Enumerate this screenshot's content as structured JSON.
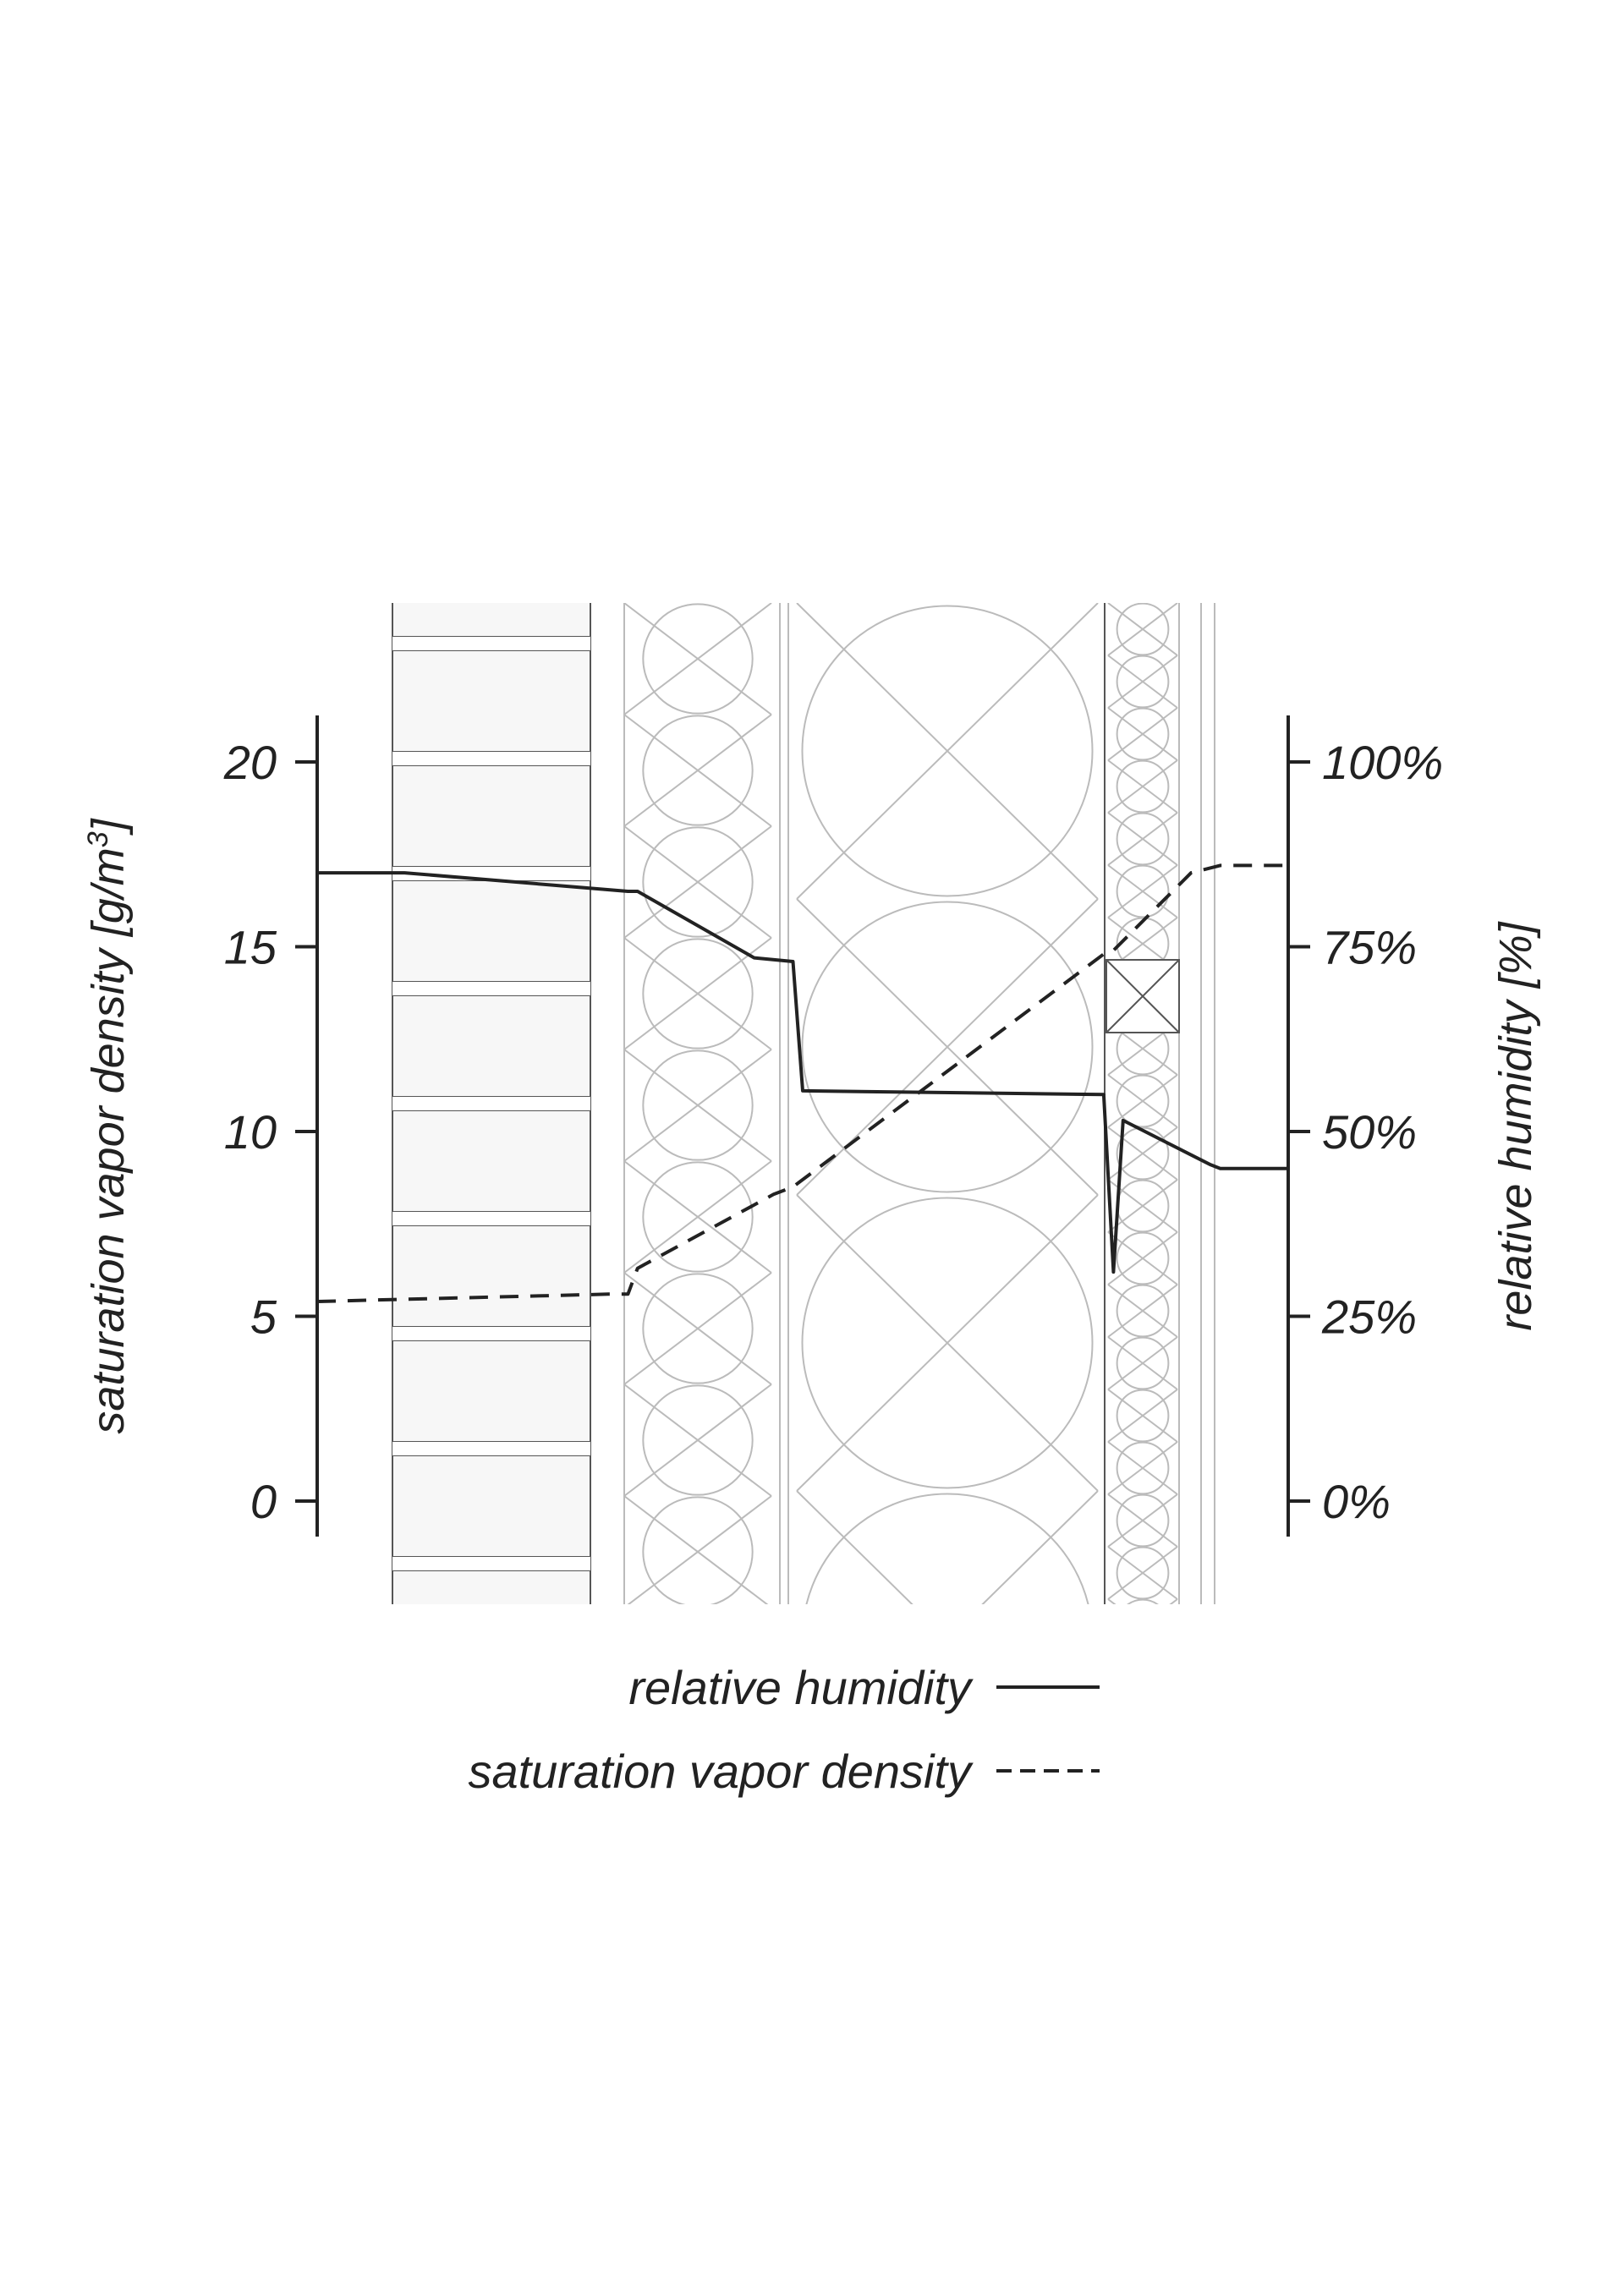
{
  "chart_data": {
    "type": "line",
    "xlabel": "",
    "y_left": {
      "label": "saturation vapor density [g/m³]",
      "label_main": "saturation vapor density [g/m",
      "label_sup": "3",
      "label_end": "]",
      "ylim": [
        -1,
        21
      ],
      "ticks": [
        "20",
        "15",
        "10",
        "5",
        "0"
      ],
      "tick_values": [
        20,
        15,
        10,
        5,
        0
      ]
    },
    "y_right": {
      "label": "relative humidity [%]",
      "ylim": [
        -5,
        105
      ],
      "ticks": [
        "100%",
        "75%",
        "50%",
        "25%",
        "0%"
      ],
      "tick_values": [
        100,
        75,
        50,
        25,
        0
      ]
    },
    "series": [
      {
        "name": "relative humidity",
        "axis": "right",
        "style": "solid",
        "x": [
          0,
          9,
          32,
          33,
          45,
          49,
          50,
          81,
          82,
          83,
          92,
          93,
          100
        ],
        "y": [
          85,
          85,
          82.5,
          82.5,
          73.5,
          73,
          55.5,
          55,
          31,
          51.5,
          45.5,
          45,
          45
        ]
      },
      {
        "name": "saturation vapor density",
        "axis": "left",
        "style": "dashed",
        "x": [
          0,
          30,
          32,
          33,
          47,
          49,
          81,
          82,
          90,
          93,
          100
        ],
        "y": [
          5.4,
          5.6,
          5.6,
          6.3,
          8.3,
          8.5,
          14.8,
          14.9,
          17.0,
          17.2,
          17.2
        ]
      }
    ],
    "legend": {
      "position": "bottom",
      "entries": [
        {
          "label": "relative humidity",
          "style": "solid"
        },
        {
          "label": "saturation vapor density",
          "style": "dashed"
        }
      ]
    },
    "background": "wall-section-drawing",
    "colors": {
      "line": "#222222",
      "text": "#222222",
      "brick_fill": "#f7f7f7",
      "drawing_line": "#bbbbbb"
    }
  }
}
